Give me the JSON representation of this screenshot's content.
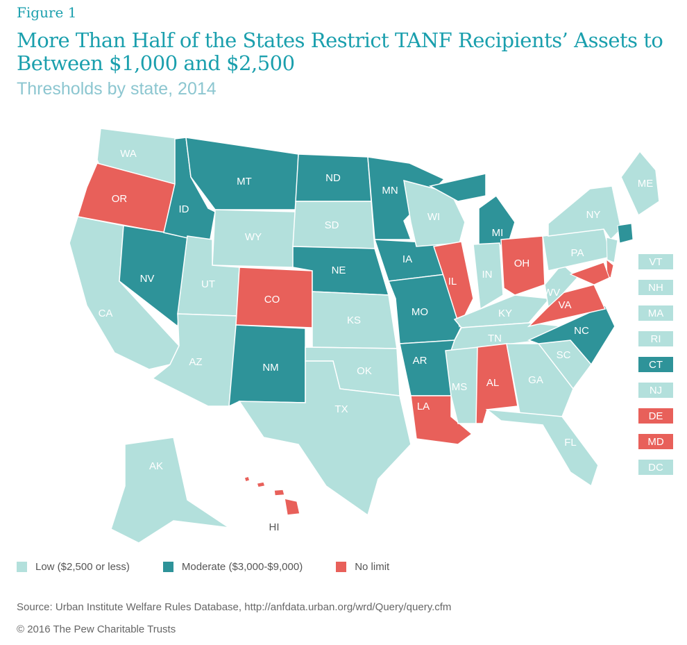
{
  "figure_label": "Figure 1",
  "title": "More Than Half of the States Restrict TANF Recipients’ Assets to Between $1,000 and $2,500",
  "subtitle": "Thresholds by state, 2014",
  "colors": {
    "low": "#b3e0dc",
    "moderate": "#2e9399",
    "none": "#e8605a",
    "title": "#1a9fad"
  },
  "legend": [
    {
      "key": "low",
      "label": "Low ($2,500 or less)"
    },
    {
      "key": "moderate",
      "label": "Moderate ($3,000-$9,000)"
    },
    {
      "key": "none",
      "label": "No limit"
    }
  ],
  "states": [
    {
      "abbr": "WA",
      "cat": "low"
    },
    {
      "abbr": "OR",
      "cat": "none"
    },
    {
      "abbr": "CA",
      "cat": "low"
    },
    {
      "abbr": "NV",
      "cat": "moderate"
    },
    {
      "abbr": "ID",
      "cat": "moderate"
    },
    {
      "abbr": "MT",
      "cat": "moderate"
    },
    {
      "abbr": "WY",
      "cat": "low"
    },
    {
      "abbr": "UT",
      "cat": "low"
    },
    {
      "abbr": "AZ",
      "cat": "low"
    },
    {
      "abbr": "CO",
      "cat": "none"
    },
    {
      "abbr": "NM",
      "cat": "moderate"
    },
    {
      "abbr": "ND",
      "cat": "moderate"
    },
    {
      "abbr": "SD",
      "cat": "low"
    },
    {
      "abbr": "NE",
      "cat": "moderate"
    },
    {
      "abbr": "KS",
      "cat": "low"
    },
    {
      "abbr": "OK",
      "cat": "low"
    },
    {
      "abbr": "TX",
      "cat": "low"
    },
    {
      "abbr": "MN",
      "cat": "moderate"
    },
    {
      "abbr": "IA",
      "cat": "moderate"
    },
    {
      "abbr": "MO",
      "cat": "moderate"
    },
    {
      "abbr": "AR",
      "cat": "moderate"
    },
    {
      "abbr": "LA",
      "cat": "none"
    },
    {
      "abbr": "WI",
      "cat": "low"
    },
    {
      "abbr": "IL",
      "cat": "none"
    },
    {
      "abbr": "MI",
      "cat": "moderate"
    },
    {
      "abbr": "IN",
      "cat": "low"
    },
    {
      "abbr": "OH",
      "cat": "none"
    },
    {
      "abbr": "KY",
      "cat": "low"
    },
    {
      "abbr": "TN",
      "cat": "low"
    },
    {
      "abbr": "MS",
      "cat": "low"
    },
    {
      "abbr": "AL",
      "cat": "none"
    },
    {
      "abbr": "GA",
      "cat": "low"
    },
    {
      "abbr": "FL",
      "cat": "low"
    },
    {
      "abbr": "SC",
      "cat": "low"
    },
    {
      "abbr": "NC",
      "cat": "moderate"
    },
    {
      "abbr": "VA",
      "cat": "none"
    },
    {
      "abbr": "WV",
      "cat": "low"
    },
    {
      "abbr": "PA",
      "cat": "low"
    },
    {
      "abbr": "NY",
      "cat": "low"
    },
    {
      "abbr": "ME",
      "cat": "low"
    },
    {
      "abbr": "AK",
      "cat": "low"
    },
    {
      "abbr": "HI",
      "cat": "none"
    }
  ],
  "small_states": [
    {
      "abbr": "VT",
      "cat": "low"
    },
    {
      "abbr": "NH",
      "cat": "low"
    },
    {
      "abbr": "MA",
      "cat": "low"
    },
    {
      "abbr": "RI",
      "cat": "low"
    },
    {
      "abbr": "CT",
      "cat": "moderate"
    },
    {
      "abbr": "NJ",
      "cat": "low"
    },
    {
      "abbr": "DE",
      "cat": "none"
    },
    {
      "abbr": "MD",
      "cat": "none"
    },
    {
      "abbr": "DC",
      "cat": "low"
    }
  ],
  "source": "Source: Urban Institute Welfare Rules Database, http://anfdata.urban.org/wrd/Query/query.cfm",
  "copyright": "© 2016 The Pew Charitable Trusts"
}
